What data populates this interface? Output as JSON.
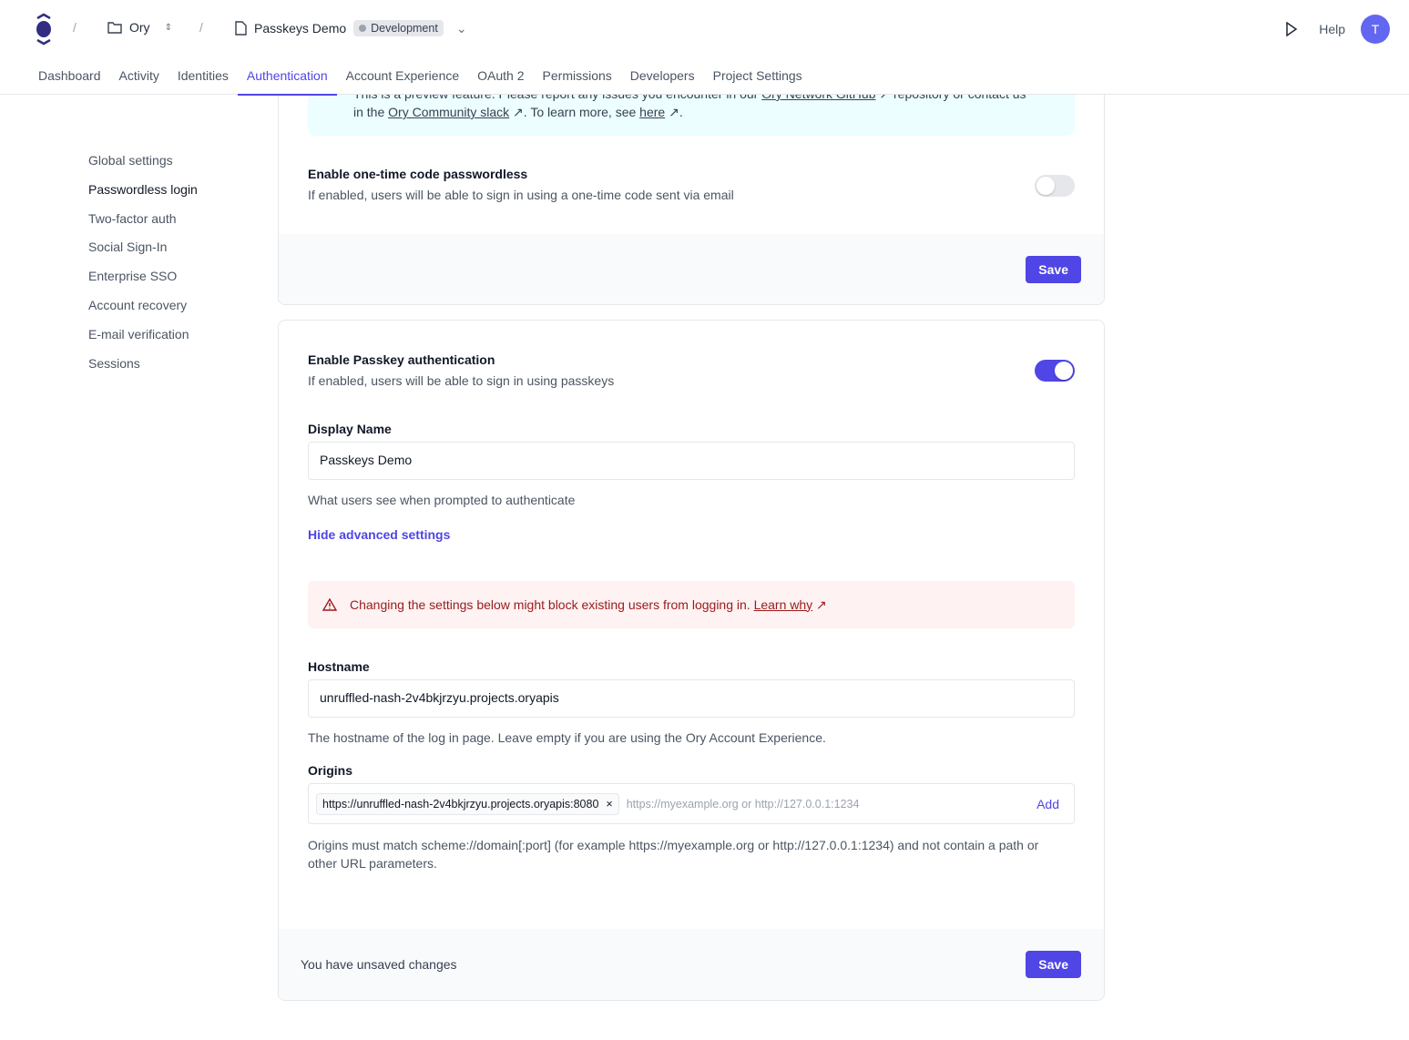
{
  "header": {
    "org": "Ory",
    "project": "Passkeys Demo",
    "environment": "Development",
    "help": "Help",
    "avatar_initial": "T",
    "separator": "/"
  },
  "tabs": [
    "Dashboard",
    "Activity",
    "Identities",
    "Authentication",
    "Account Experience",
    "OAuth 2",
    "Permissions",
    "Developers",
    "Project Settings"
  ],
  "active_tab": "Authentication",
  "sidebar": [
    "Global settings",
    "Passwordless login",
    "Two-factor auth",
    "Social Sign-In",
    "Enterprise SSO",
    "Account recovery",
    "E-mail verification",
    "Sessions"
  ],
  "active_sidebar": "Passwordless login",
  "preview_banner": {
    "text1": "This is a preview feature. Please report any issues you encounter in our ",
    "link1": "Ory Network GitHub",
    "text2": " repository or contact us in the ",
    "link2": "Ory Community slack",
    "text3": ". To learn more, see ",
    "link3": "here",
    "text4": "."
  },
  "code_section": {
    "title": "Enable one-time code passwordless",
    "description": "If enabled, users will be able to sign in using a one-time code sent via email",
    "enabled": false,
    "save": "Save"
  },
  "passkey_section": {
    "title": "Enable Passkey authentication",
    "description": "If enabled, users will be able to sign in using passkeys",
    "enabled": true,
    "display_name_label": "Display Name",
    "display_name_value": "Passkeys Demo",
    "display_name_help": "What users see when prompted to authenticate",
    "advanced_toggle": "Hide advanced settings",
    "warning": "Changing the settings below might block existing users from logging in. ",
    "warning_link": "Learn why",
    "hostname_label": "Hostname",
    "hostname_value": "unruffled-nash-2v4bkjrzyu.projects.oryapis",
    "hostname_help": "The hostname of the log in page. Leave empty if you are using the Ory Account Experience.",
    "origins_label": "Origins",
    "origins": [
      "https://unruffled-nash-2v4bkjrzyu.projects.oryapis:8080"
    ],
    "origins_placeholder": "https://myexample.org or http://127.0.0.1:1234",
    "add": "Add",
    "origins_help": "Origins must match scheme://domain[:port] (for example https://myexample.org or http://127.0.0.1:1234) and not contain a path or other URL parameters.",
    "unsaved": "You have unsaved changes",
    "save": "Save"
  },
  "colors": {
    "accent": "#4f46e5",
    "toggle_off": "#e5e7eb",
    "warning_bg": "#fef2f2",
    "info_bg": "#ecfeff"
  }
}
